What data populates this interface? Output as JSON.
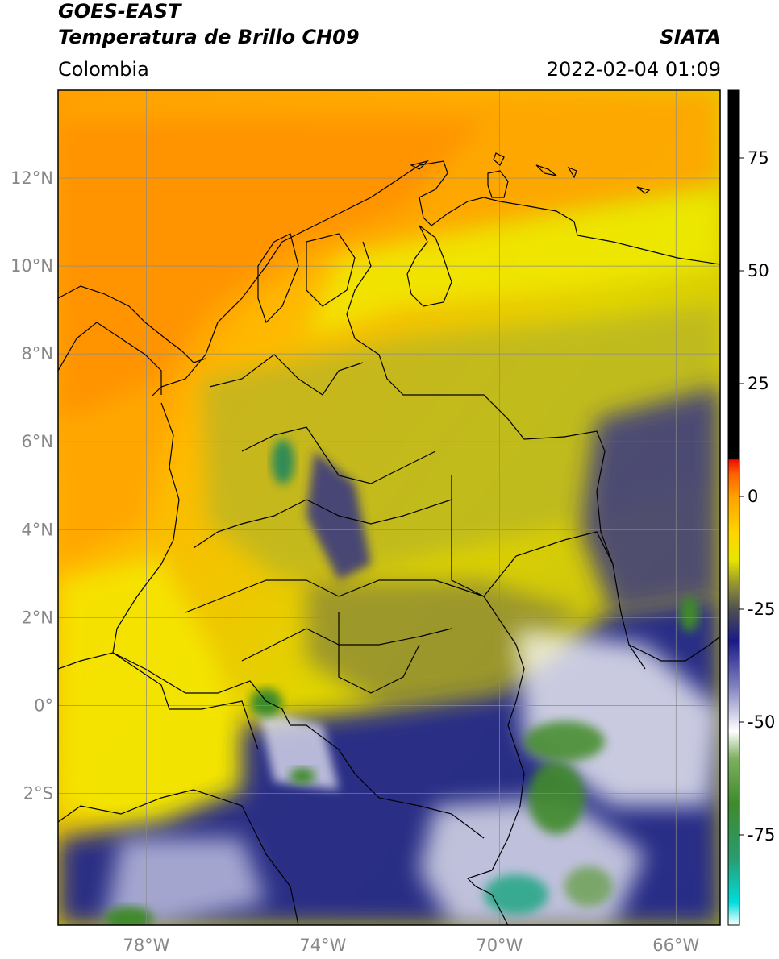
{
  "header": {
    "satellite": "GOES-EAST",
    "product": "Temperatura de Brillo CH09",
    "brand": "SIATA",
    "region": "Colombia",
    "datetime": "2022-02-04 01:09"
  },
  "map": {
    "lon_range": [
      -80.0,
      -65.0
    ],
    "lat_range": [
      -5.0,
      14.0
    ],
    "gridlines": true,
    "lat_ticks": [
      {
        "value": 12,
        "label": "12°N"
      },
      {
        "value": 10,
        "label": "10°N"
      },
      {
        "value": 8,
        "label": "8°N"
      },
      {
        "value": 6,
        "label": "6°N"
      },
      {
        "value": 4,
        "label": "4°N"
      },
      {
        "value": 2,
        "label": "2°N"
      },
      {
        "value": 0,
        "label": "0°"
      },
      {
        "value": -2,
        "label": "2°S"
      }
    ],
    "lon_ticks": [
      {
        "value": -78,
        "label": "78°W"
      },
      {
        "value": -74,
        "label": "74°W"
      },
      {
        "value": -70,
        "label": "70°W"
      },
      {
        "value": -66,
        "label": "66°W"
      }
    ]
  },
  "colorbar": {
    "vmin": -95,
    "vmax": 90,
    "ticks": [
      {
        "value": 75,
        "label": "75"
      },
      {
        "value": 50,
        "label": "50"
      },
      {
        "value": 25,
        "label": "25"
      },
      {
        "value": 0,
        "label": "0"
      },
      {
        "value": -25,
        "label": "-25"
      },
      {
        "value": -50,
        "label": "-50"
      },
      {
        "value": -75,
        "label": "-75"
      }
    ],
    "stops": [
      {
        "value": -95,
        "color": "#ffffff"
      },
      {
        "value": -90,
        "color": "#00dddd"
      },
      {
        "value": -80,
        "color": "#2a9b6e"
      },
      {
        "value": -68,
        "color": "#3f8a2c"
      },
      {
        "value": -58,
        "color": "#7fb060"
      },
      {
        "value": -52,
        "color": "#ffffff"
      },
      {
        "value": -42,
        "color": "#8080c0"
      },
      {
        "value": -32,
        "color": "#1a1a88"
      },
      {
        "value": -25,
        "color": "#505050"
      },
      {
        "value": -19,
        "color": "#9a9a30"
      },
      {
        "value": -14,
        "color": "#e6e600"
      },
      {
        "value": -8,
        "color": "#ffd400"
      },
      {
        "value": 0,
        "color": "#ffa000"
      },
      {
        "value": 5,
        "color": "#ff6000"
      },
      {
        "value": 8,
        "color": "#ee1100"
      },
      {
        "value": 8.5,
        "color": "#000000"
      },
      {
        "value": 90,
        "color": "#000000"
      }
    ]
  }
}
